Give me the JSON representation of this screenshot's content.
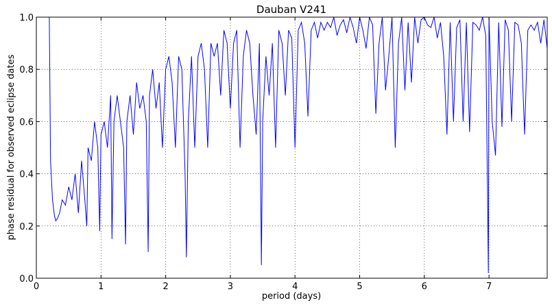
{
  "chart_data": {
    "type": "line",
    "title": "Dauban V241",
    "xlabel": "period (days)",
    "ylabel": "phase residual for observed eclipse dates",
    "xlim": [
      0,
      7.9
    ],
    "ylim": [
      0,
      1.0
    ],
    "xticks": [
      "0",
      "1",
      "2",
      "3",
      "4",
      "5",
      "6",
      "7"
    ],
    "yticks": [
      "0.0",
      "0.2",
      "0.4",
      "0.6",
      "0.8",
      "1.0"
    ],
    "grid": true,
    "legend": "none",
    "line_color": "#0000ff",
    "series": [
      {
        "x": [
          0.2,
          0.22,
          0.25,
          0.28,
          0.3,
          0.33,
          0.36,
          0.4,
          0.45,
          0.5,
          0.55,
          0.6,
          0.65,
          0.7,
          0.75,
          0.78,
          0.8,
          0.85,
          0.9,
          0.95,
          0.98,
          1.0,
          1.05,
          1.1,
          1.15,
          1.17,
          1.2,
          1.25,
          1.3,
          1.35,
          1.38,
          1.4,
          1.45,
          1.5,
          1.55,
          1.6,
          1.65,
          1.7,
          1.73,
          1.75,
          1.8,
          1.85,
          1.9,
          1.95,
          2.0,
          2.05,
          2.1,
          2.15,
          2.2,
          2.25,
          2.3,
          2.32,
          2.35,
          2.4,
          2.45,
          2.5,
          2.55,
          2.6,
          2.65,
          2.7,
          2.75,
          2.8,
          2.85,
          2.9,
          2.95,
          3.0,
          3.05,
          3.1,
          3.15,
          3.2,
          3.25,
          3.3,
          3.35,
          3.4,
          3.45,
          3.48,
          3.5,
          3.55,
          3.6,
          3.65,
          3.7,
          3.75,
          3.8,
          3.85,
          3.9,
          3.95,
          4.0,
          4.05,
          4.1,
          4.15,
          4.2,
          4.25,
          4.3,
          4.35,
          4.4,
          4.45,
          4.5,
          4.55,
          4.6,
          4.65,
          4.7,
          4.75,
          4.8,
          4.85,
          4.9,
          4.95,
          5.0,
          5.05,
          5.1,
          5.15,
          5.2,
          5.25,
          5.3,
          5.35,
          5.4,
          5.45,
          5.5,
          5.55,
          5.6,
          5.65,
          5.7,
          5.75,
          5.8,
          5.85,
          5.9,
          5.95,
          6.0,
          6.05,
          6.1,
          6.15,
          6.2,
          6.25,
          6.3,
          6.35,
          6.4,
          6.45,
          6.5,
          6.55,
          6.6,
          6.65,
          6.7,
          6.75,
          6.8,
          6.85,
          6.9,
          6.95,
          6.99,
          7.0,
          7.05,
          7.1,
          7.15,
          7.2,
          7.25,
          7.3,
          7.35,
          7.4,
          7.45,
          7.5,
          7.55,
          7.6,
          7.65,
          7.7,
          7.75,
          7.8,
          7.85,
          7.9
        ],
        "values": [
          1.0,
          0.45,
          0.3,
          0.24,
          0.22,
          0.23,
          0.25,
          0.3,
          0.28,
          0.35,
          0.3,
          0.4,
          0.25,
          0.45,
          0.3,
          0.2,
          0.5,
          0.45,
          0.6,
          0.5,
          0.18,
          0.55,
          0.6,
          0.5,
          0.7,
          0.15,
          0.6,
          0.7,
          0.6,
          0.5,
          0.13,
          0.6,
          0.7,
          0.55,
          0.75,
          0.65,
          0.7,
          0.6,
          0.1,
          0.7,
          0.8,
          0.65,
          0.75,
          0.5,
          0.8,
          0.85,
          0.75,
          0.5,
          0.85,
          0.8,
          0.4,
          0.08,
          0.6,
          0.85,
          0.5,
          0.85,
          0.9,
          0.8,
          0.5,
          0.9,
          0.85,
          0.9,
          0.7,
          0.95,
          0.9,
          0.65,
          0.9,
          0.95,
          0.5,
          0.85,
          0.95,
          0.9,
          0.7,
          0.55,
          0.9,
          0.05,
          0.6,
          0.85,
          0.7,
          0.9,
          0.5,
          0.95,
          0.9,
          0.7,
          0.95,
          0.92,
          0.5,
          0.95,
          0.98,
          0.9,
          0.62,
          0.95,
          0.98,
          0.92,
          0.98,
          0.95,
          0.98,
          0.96,
          1.0,
          0.93,
          0.97,
          0.99,
          0.94,
          1.0,
          0.96,
          0.9,
          1.0,
          0.95,
          0.88,
          1.0,
          0.97,
          0.63,
          0.9,
          1.0,
          0.72,
          0.85,
          1.0,
          0.5,
          0.9,
          1.0,
          0.72,
          0.98,
          0.75,
          1.0,
          0.9,
          0.99,
          1.0,
          0.97,
          0.96,
          1.0,
          0.92,
          0.98,
          0.85,
          0.55,
          0.98,
          0.6,
          0.96,
          0.99,
          0.6,
          0.98,
          0.56,
          0.98,
          0.97,
          0.95,
          1.0,
          0.93,
          0.02,
          1.0,
          0.6,
          0.47,
          0.98,
          0.58,
          0.99,
          0.95,
          0.6,
          0.98,
          0.97,
          0.9,
          0.55,
          0.95,
          0.97,
          0.95,
          0.98,
          0.9,
          0.99,
          0.88
        ]
      }
    ]
  }
}
